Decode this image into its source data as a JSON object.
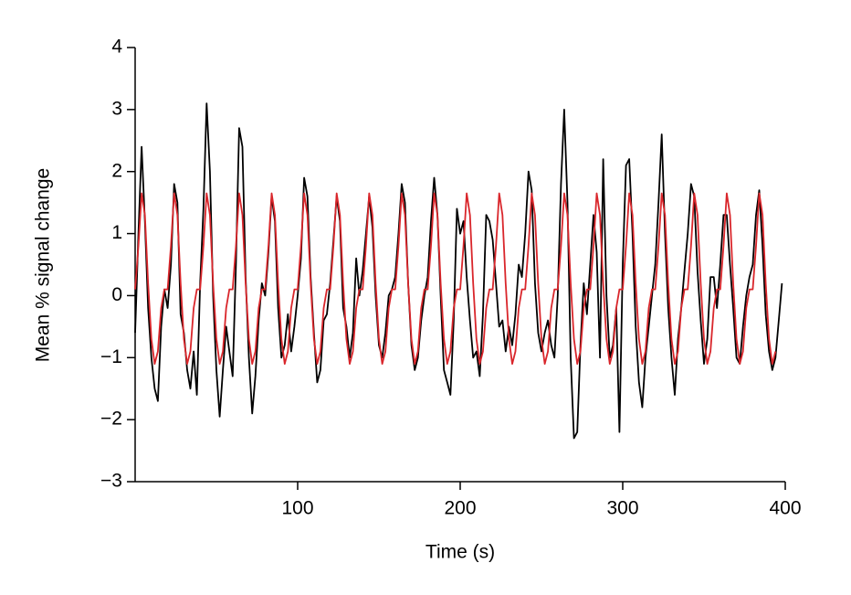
{
  "chart_data": {
    "type": "line",
    "x_label": "Time (s)",
    "y_label": "Mean % signal change",
    "x": [
      0,
      2,
      4,
      6,
      8,
      10,
      12,
      14,
      16,
      18,
      20,
      22,
      24,
      26,
      28,
      30,
      32,
      34,
      36,
      38,
      40,
      42,
      44,
      46,
      48,
      50,
      52,
      54,
      56,
      58,
      60,
      62,
      64,
      66,
      68,
      70,
      72,
      74,
      76,
      78,
      80,
      82,
      84,
      86,
      88,
      90,
      92,
      94,
      96,
      98,
      100,
      102,
      104,
      106,
      108,
      110,
      112,
      114,
      116,
      118,
      120,
      122,
      124,
      126,
      128,
      130,
      132,
      134,
      136,
      138,
      140,
      142,
      144,
      146,
      148,
      150,
      152,
      154,
      156,
      158,
      160,
      162,
      164,
      166,
      168,
      170,
      172,
      174,
      176,
      178,
      180,
      182,
      184,
      186,
      188,
      190,
      192,
      194,
      196,
      198,
      200,
      202,
      204,
      206,
      208,
      210,
      212,
      214,
      216,
      218,
      220,
      222,
      224,
      226,
      228,
      230,
      232,
      234,
      236,
      238,
      240,
      242,
      244,
      246,
      248,
      250,
      252,
      254,
      256,
      258,
      260,
      262,
      264,
      266,
      268,
      270,
      272,
      274,
      276,
      278,
      280,
      282,
      284,
      286,
      288,
      290,
      292,
      294,
      296,
      298,
      300,
      302,
      304,
      306,
      308,
      310,
      312,
      314,
      316,
      318,
      320,
      322,
      324,
      326,
      328,
      330,
      332,
      334,
      336,
      338,
      340,
      342,
      344,
      346,
      348,
      350,
      352,
      354,
      356,
      358,
      360,
      362,
      364,
      366,
      368,
      370,
      372,
      374,
      376,
      378,
      380,
      382,
      384,
      386,
      388,
      390,
      392,
      394,
      396,
      398
    ],
    "series": [
      {
        "color": "#000000",
        "values": [
          -0.6,
          1.0,
          2.4,
          1.2,
          -0.2,
          -1.0,
          -1.5,
          -1.7,
          -0.5,
          0.1,
          -0.2,
          0.5,
          1.8,
          1.5,
          -0.3,
          -0.6,
          -1.2,
          -1.5,
          -0.9,
          -1.6,
          0.2,
          1.4,
          3.1,
          2.0,
          0.0,
          -1.2,
          -1.95,
          -1.2,
          -0.5,
          -0.9,
          -1.3,
          0.5,
          2.7,
          2.4,
          0.3,
          -1.0,
          -1.9,
          -1.3,
          -0.4,
          0.2,
          0.0,
          0.7,
          1.6,
          1.2,
          -0.2,
          -1.0,
          -0.8,
          -0.3,
          -0.9,
          -0.5,
          0.0,
          0.6,
          1.9,
          1.6,
          0.3,
          -0.6,
          -1.4,
          -1.2,
          -0.4,
          -0.3,
          0.2,
          0.9,
          1.6,
          1.2,
          -0.2,
          -0.5,
          -1.0,
          -0.6,
          0.6,
          0.0,
          0.4,
          1.0,
          1.6,
          1.1,
          0.0,
          -0.8,
          -1.0,
          -0.6,
          0.0,
          0.1,
          0.3,
          1.0,
          1.8,
          1.5,
          0.2,
          -0.8,
          -1.2,
          -1.0,
          -0.4,
          0.0,
          0.3,
          1.2,
          1.9,
          1.3,
          0.0,
          -1.2,
          -1.4,
          -1.6,
          -0.4,
          1.4,
          1.0,
          1.2,
          0.3,
          -0.4,
          -1.0,
          -0.9,
          -1.3,
          -0.3,
          1.3,
          1.2,
          0.9,
          0.2,
          -0.5,
          -0.4,
          -0.9,
          -0.5,
          -0.8,
          -0.3,
          0.5,
          0.3,
          1.0,
          2.0,
          1.7,
          0.2,
          -0.6,
          -0.9,
          -0.6,
          -0.4,
          -0.8,
          -1.0,
          0.0,
          1.8,
          3.0,
          1.5,
          -1.0,
          -2.3,
          -2.2,
          -0.8,
          0.2,
          -0.3,
          0.5,
          1.3,
          0.7,
          -1.0,
          2.2,
          0.0,
          -1.0,
          -0.8,
          -0.2,
          -2.2,
          0.5,
          2.1,
          2.2,
          1.0,
          -0.5,
          -1.4,
          -1.8,
          -1.0,
          -0.5,
          0.0,
          0.5,
          1.5,
          2.6,
          1.0,
          -0.2,
          -1.0,
          -1.6,
          -0.7,
          -0.2,
          0.4,
          1.0,
          1.8,
          1.6,
          0.4,
          -0.4,
          -1.1,
          -0.7,
          0.3,
          0.3,
          -0.2,
          0.5,
          1.3,
          1.3,
          0.5,
          -0.2,
          -1.0,
          -1.1,
          -0.5,
          0.0,
          0.3,
          0.5,
          1.3,
          1.7,
          0.8,
          -0.3,
          -0.9,
          -1.2,
          -1.0,
          -0.4,
          0.2
        ]
      },
      {
        "color": "#d9262b",
        "values": [
          0.1,
          0.8,
          1.65,
          1.3,
          0.2,
          -0.7,
          -1.1,
          -0.9,
          -0.2,
          0.1,
          0.1,
          0.8,
          1.65,
          1.3,
          0.2,
          -0.7,
          -1.1,
          -0.9,
          -0.2,
          0.1,
          0.1,
          0.8,
          1.65,
          1.3,
          0.2,
          -0.7,
          -1.1,
          -0.9,
          -0.2,
          0.1,
          0.1,
          0.8,
          1.65,
          1.3,
          0.2,
          -0.7,
          -1.1,
          -0.9,
          -0.2,
          0.1,
          0.1,
          0.8,
          1.65,
          1.3,
          0.2,
          -0.7,
          -1.1,
          -0.9,
          -0.2,
          0.1,
          0.1,
          0.8,
          1.65,
          1.3,
          0.2,
          -0.7,
          -1.1,
          -0.9,
          -0.2,
          0.1,
          0.1,
          0.8,
          1.65,
          1.3,
          0.2,
          -0.7,
          -1.1,
          -0.9,
          -0.2,
          0.1,
          0.1,
          0.8,
          1.65,
          1.3,
          0.2,
          -0.7,
          -1.1,
          -0.9,
          -0.2,
          0.1,
          0.1,
          0.8,
          1.65,
          1.3,
          0.2,
          -0.7,
          -1.1,
          -0.9,
          -0.2,
          0.1,
          0.1,
          0.8,
          1.65,
          1.3,
          0.2,
          -0.7,
          -1.1,
          -0.9,
          -0.2,
          0.1,
          0.1,
          0.8,
          1.65,
          1.3,
          0.2,
          -0.7,
          -1.1,
          -0.9,
          -0.2,
          0.1,
          0.1,
          0.8,
          1.65,
          1.3,
          0.2,
          -0.7,
          -1.1,
          -0.9,
          -0.2,
          0.1,
          0.1,
          0.8,
          1.65,
          1.3,
          0.2,
          -0.7,
          -1.1,
          -0.9,
          -0.2,
          0.1,
          0.1,
          0.8,
          1.65,
          1.3,
          0.2,
          -0.7,
          -1.1,
          -0.9,
          -0.2,
          0.1,
          0.1,
          0.8,
          1.65,
          1.3,
          0.2,
          -0.7,
          -1.1,
          -0.9,
          -0.2,
          0.1,
          0.1,
          0.8,
          1.65,
          1.3,
          0.2,
          -0.7,
          -1.1,
          -0.9,
          -0.2,
          0.1,
          0.1,
          0.8,
          1.65,
          1.3,
          0.2,
          -0.7,
          -1.1,
          -0.9,
          -0.2,
          0.1,
          0.1,
          0.8,
          1.65,
          1.3,
          0.2,
          -0.7,
          -1.1,
          -0.9,
          -0.2,
          0.1,
          0.1,
          0.8,
          1.65,
          1.3,
          0.2,
          -0.7,
          -1.1,
          -0.9,
          -0.2,
          0.1,
          0.1,
          0.8,
          1.65,
          1.3,
          0.2,
          -0.7,
          -1.1,
          -0.9,
          null,
          null
        ]
      }
    ],
    "xlim": [
      0,
      400
    ],
    "xticks": [
      100,
      200,
      300,
      400
    ],
    "ylim": [
      -3,
      4
    ],
    "yticks": [
      {
        "value": -3,
        "label": "−3"
      },
      {
        "value": -2,
        "label": "−2"
      },
      {
        "value": -1,
        "label": "−1"
      },
      0,
      1,
      2,
      3,
      4
    ],
    "grid": false
  }
}
